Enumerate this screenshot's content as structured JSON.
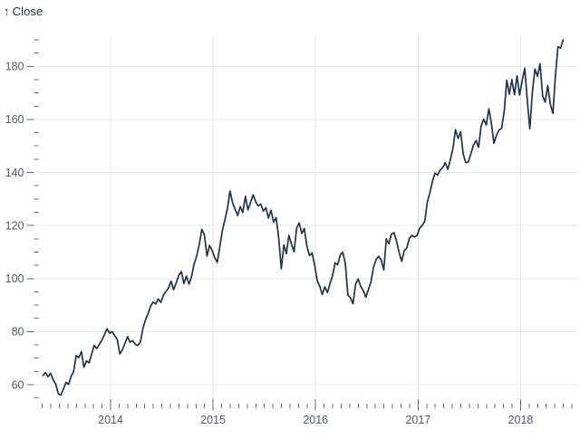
{
  "header": {
    "arrow": "↑",
    "label": "Close"
  },
  "colors": {
    "background": "#ffffff",
    "line": "#203349",
    "header_text": "#213349",
    "tick_label": "#4d5c70",
    "tick_mark": "#5f6e80",
    "grid": "#e2e5ea"
  },
  "chart_data": {
    "type": "line",
    "title": "Close",
    "ylabel": "Close",
    "xlabel": "",
    "grid": true,
    "legend": "none",
    "x_domain": [
      2013.257,
      2018.553
    ],
    "y_domain": [
      55,
      190
    ],
    "x_major_ticks": [
      2014,
      2015,
      2016,
      2017,
      2018
    ],
    "x_minor_ticks": {
      "start_year": 2013,
      "start_month": 4,
      "end": 2018.502,
      "step_months": 1
    },
    "y_major_ticks": [
      60,
      80,
      100,
      120,
      140,
      160,
      180
    ],
    "y_minor_ticks": {
      "start": 55,
      "end": 190,
      "step": 5
    },
    "series": [
      {
        "name": "Close",
        "t_start": 2013.34,
        "t_step": 0.025,
        "values": [
          63.4,
          64.6,
          63.0,
          64.3,
          61.8,
          60.2,
          56.6,
          56.1,
          58.4,
          60.9,
          60.1,
          63.2,
          65.0,
          71.0,
          70.2,
          72.5,
          66.6,
          69.0,
          68.2,
          71.5,
          74.8,
          73.6,
          75.2,
          76.8,
          78.9,
          81.1,
          79.4,
          80.0,
          78.5,
          77.0,
          71.6,
          73.1,
          75.6,
          78.1,
          76.0,
          76.6,
          75.2,
          74.8,
          76.0,
          81.2,
          84.4,
          86.7,
          89.5,
          91.2,
          90.4,
          92.3,
          91.0,
          93.7,
          95.1,
          96.4,
          99.0,
          95.8,
          98.4,
          101.3,
          102.6,
          98.1,
          100.9,
          97.9,
          100.8,
          105.5,
          108.5,
          112.9,
          118.6,
          116.5,
          108.5,
          112.5,
          110.6,
          108.0,
          106.1,
          111.9,
          118.0,
          122.0,
          126.5,
          133.0,
          128.6,
          126.1,
          123.8,
          127.1,
          124.9,
          131.0,
          125.9,
          128.6,
          131.6,
          129.0,
          127.4,
          128.1,
          125.4,
          126.7,
          122.8,
          125.8,
          121.3,
          123.0,
          115.4,
          103.7,
          112.7,
          109.4,
          116.3,
          112.9,
          110.1,
          119.0,
          121.0,
          117.0,
          118.9,
          112.3,
          108.7,
          109.6,
          105.3,
          99.4,
          97.1,
          94.0,
          96.9,
          94.7,
          98.1,
          101.0,
          105.9,
          105.2,
          108.8,
          110.0,
          105.7,
          93.7,
          92.8,
          90.5,
          97.9,
          99.9,
          97.1,
          95.5,
          93.0,
          95.9,
          98.7,
          104.2,
          107.2,
          108.4,
          107.0,
          103.3,
          115.0,
          113.1,
          116.8,
          117.3,
          114.0,
          109.8,
          106.5,
          110.5,
          111.6,
          115.2,
          116.3,
          115.7,
          116.2,
          119.0,
          120.0,
          121.6,
          128.8,
          132.4,
          136.7,
          139.8,
          139.0,
          140.9,
          141.8,
          143.7,
          141.2,
          144.9,
          149.0,
          156.1,
          152.8,
          155.4,
          147.0,
          143.7,
          144.0,
          147.1,
          150.3,
          152.1,
          149.5,
          157.5,
          160.1,
          157.9,
          164.0,
          158.6,
          151.0,
          154.1,
          156.0,
          156.6,
          163.1,
          174.8,
          169.5,
          175.0,
          169.3,
          176.4,
          169.2,
          174.4,
          179.3,
          167.4,
          156.5,
          170.4,
          179.0,
          176.2,
          181.0,
          168.8,
          166.5,
          172.8,
          165.7,
          162.3,
          176.6,
          187.4,
          186.9,
          190.0
        ]
      }
    ]
  }
}
